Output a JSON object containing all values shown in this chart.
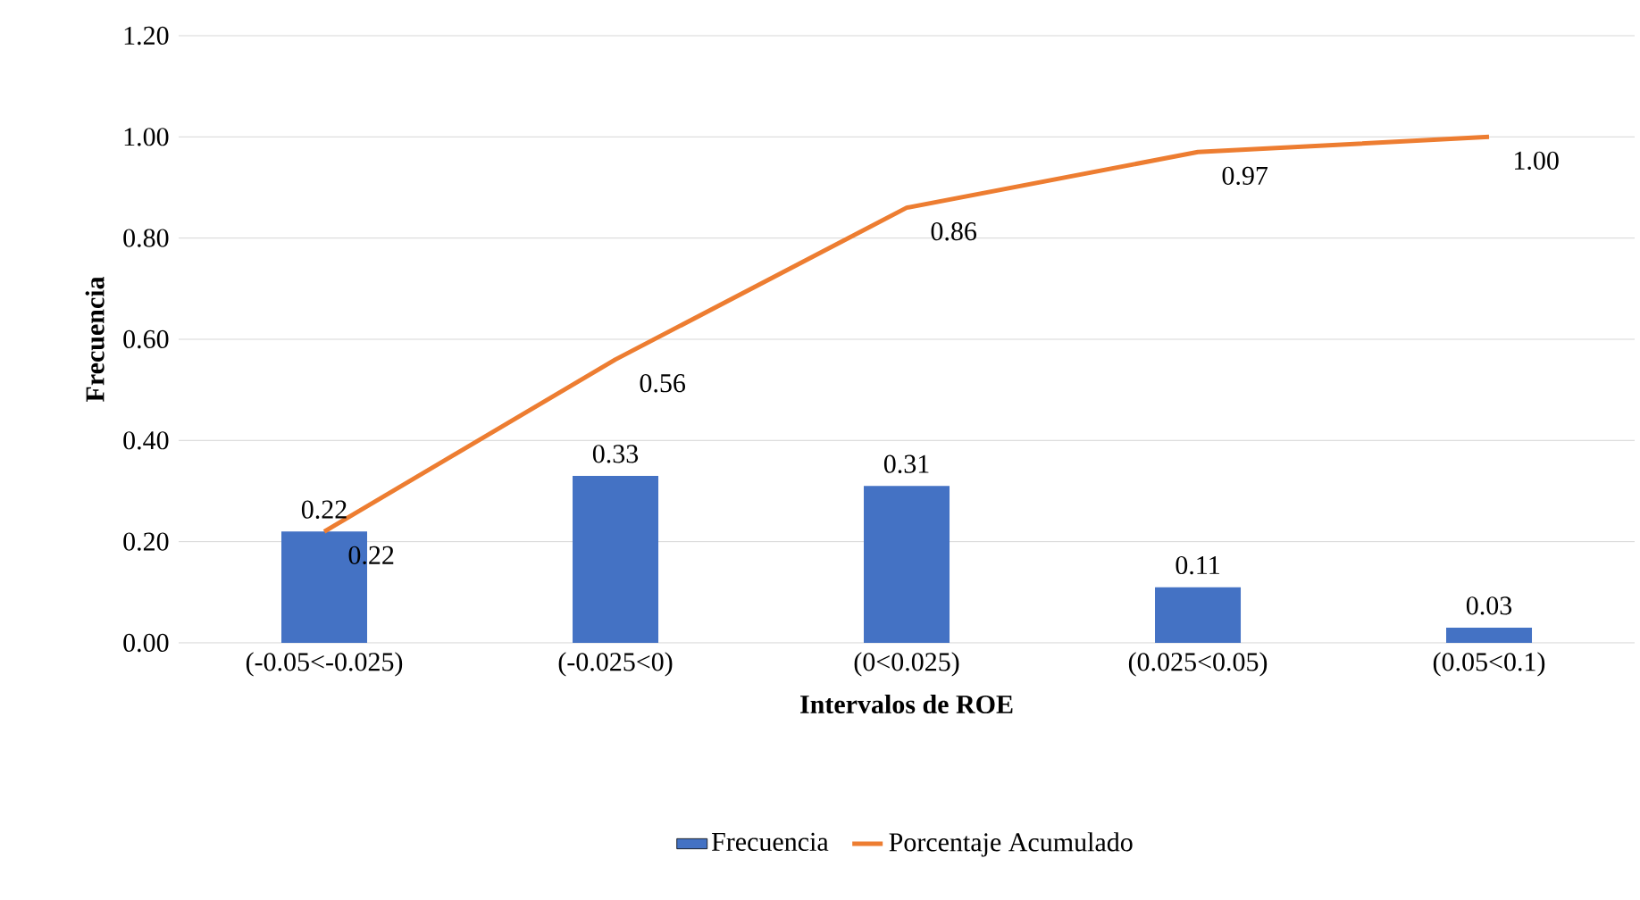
{
  "chart_data": {
    "type": "bar",
    "xlabel": "Intervalos de ROE",
    "ylabel": "Frecuencia",
    "categories": [
      "(-0.05<-0.025)",
      "(-0.025<0)",
      "(0<0.025)",
      "(0.025<0.05)",
      "(0.05<0.1)"
    ],
    "series": [
      {
        "name": "Frecuencia",
        "color": "#4472c4",
        "values": [
          0.22,
          0.33,
          0.31,
          0.11,
          0.03
        ],
        "value_labels": [
          "0.22",
          "0.33",
          "0.31",
          "0.11",
          "0.03"
        ]
      },
      {
        "name": "Porcentaje Acumulado",
        "type": "line",
        "color": "#ed7d31",
        "values": [
          0.22,
          0.56,
          0.86,
          0.97,
          1.0
        ],
        "value_labels": [
          "0.22",
          "0.56",
          "0.86",
          "0.97",
          "1.00"
        ]
      }
    ],
    "ylim": [
      0,
      1.2
    ],
    "yticks": [
      {
        "value": 0,
        "label": "0.00"
      },
      {
        "value": 0.2,
        "label": "0.20"
      },
      {
        "value": 0.4,
        "label": "0.40"
      },
      {
        "value": 0.6,
        "label": "0.60"
      },
      {
        "value": 0.8,
        "label": "0.80"
      },
      {
        "value": 1.0,
        "label": "1.00"
      },
      {
        "value": 1.2,
        "label": "1.20"
      }
    ],
    "grid": "y",
    "legend": "bottom"
  }
}
